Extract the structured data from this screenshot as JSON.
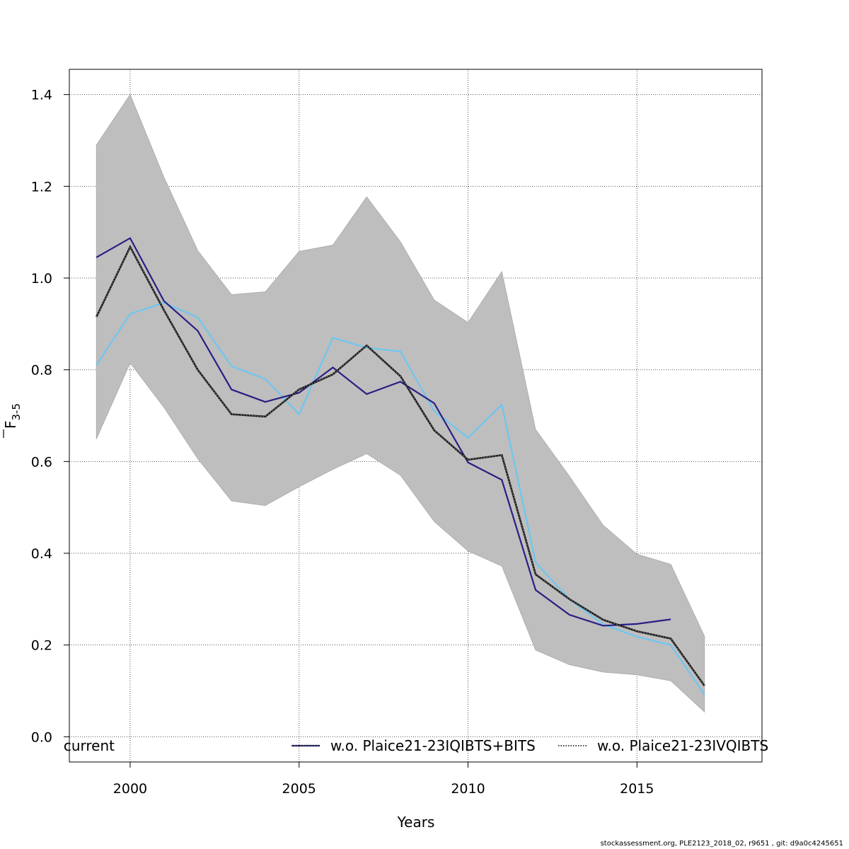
{
  "chart_data": {
    "type": "line",
    "xlabel": "Years",
    "ylabel_main": "F",
    "ylabel_sub": "3-5",
    "xlim": [
      1998.2,
      2018.7
    ],
    "ylim": [
      -0.055,
      1.455
    ],
    "xticks": [
      2000,
      2005,
      2010,
      2015
    ],
    "yticks": [
      0.0,
      0.2,
      0.4,
      0.6,
      0.8,
      1.0,
      1.2,
      1.4
    ],
    "ytick_labels": [
      "0.0",
      "0.2",
      "0.4",
      "0.6",
      "0.8",
      "1.0",
      "1.2",
      "1.4"
    ],
    "grid": true,
    "band": {
      "color": "#bebebe",
      "x": [
        1999,
        2000,
        2001,
        2002,
        2003,
        2004,
        2005,
        2006,
        2007,
        2008,
        2009,
        2010,
        2011,
        2012,
        2013,
        2014,
        2015,
        2016,
        2017
      ],
      "upper": [
        1.29,
        1.4,
        1.22,
        1.06,
        0.964,
        0.97,
        1.058,
        1.072,
        1.177,
        1.079,
        0.952,
        0.903,
        1.014,
        0.67,
        0.568,
        0.461,
        0.398,
        0.376,
        0.219
      ],
      "lower": [
        0.649,
        0.815,
        0.718,
        0.606,
        0.514,
        0.504,
        0.545,
        0.583,
        0.617,
        0.57,
        0.469,
        0.405,
        0.372,
        0.189,
        0.157,
        0.141,
        0.135,
        0.122,
        0.054
      ]
    },
    "series": [
      {
        "name": "current",
        "color": "#1a1a1a",
        "style": "dotted-dark",
        "x": [
          1999,
          2000,
          2001,
          2002,
          2003,
          2004,
          2005,
          2006,
          2007,
          2008,
          2009,
          2010,
          2011,
          2012,
          2013,
          2014,
          2015,
          2016,
          2017
        ],
        "values": [
          0.915,
          1.068,
          0.93,
          0.8,
          0.703,
          0.698,
          0.757,
          0.79,
          0.853,
          0.786,
          0.668,
          0.604,
          0.614,
          0.354,
          0.3,
          0.255,
          0.23,
          0.214,
          0.111
        ]
      },
      {
        "name": "w.o. Plaice21-23IQIBTS+BITS",
        "color": "#2a1e84",
        "style": "solid",
        "x": [
          1999,
          2000,
          2001,
          2002,
          2003,
          2004,
          2005,
          2006,
          2007,
          2008,
          2009,
          2010,
          2011,
          2012,
          2013,
          2014,
          2015,
          2016
        ],
        "values": [
          1.045,
          1.087,
          0.95,
          0.885,
          0.757,
          0.73,
          0.75,
          0.805,
          0.747,
          0.774,
          0.727,
          0.598,
          0.56,
          0.32,
          0.266,
          0.242,
          0.246,
          0.256
        ]
      },
      {
        "name": "w.o. Plaice21-23IVQIBTS",
        "color": "#6ec6f0",
        "style": "solid",
        "x": [
          1999,
          2000,
          2001,
          2002,
          2003,
          2004,
          2005,
          2006,
          2007,
          2008,
          2009,
          2010,
          2011,
          2012,
          2013,
          2014,
          2015,
          2016,
          2017
        ],
        "values": [
          0.81,
          0.922,
          0.946,
          0.914,
          0.808,
          0.78,
          0.703,
          0.87,
          0.848,
          0.84,
          0.71,
          0.652,
          0.724,
          0.38,
          0.3,
          0.245,
          0.218,
          0.2,
          0.092
        ]
      }
    ],
    "legend": {
      "placement": "bottom",
      "items": [
        {
          "label": "current"
        },
        {
          "label": "w.o. Plaice21-23IQIBTS+BITS",
          "color": "#1a1a4e"
        },
        {
          "label": "w.o. Plaice21-23IVQIBTS",
          "color": "#000000"
        }
      ]
    }
  },
  "footer": "stockassessment.org, PLE2123_2018_02, r9651 , git: d9a0c4245651"
}
